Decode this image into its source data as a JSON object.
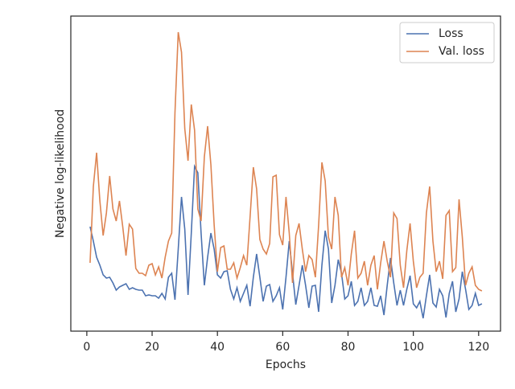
{
  "chart_data": {
    "type": "line",
    "xlabel": "Epochs",
    "ylabel": "Negative log-likelihood",
    "x": [
      1,
      2,
      3,
      4,
      5,
      6,
      7,
      8,
      9,
      10,
      11,
      12,
      13,
      14,
      15,
      16,
      17,
      18,
      19,
      20,
      21,
      22,
      23,
      24,
      25,
      26,
      27,
      28,
      29,
      30,
      31,
      32,
      33,
      34,
      35,
      36,
      37,
      38,
      39,
      40,
      41,
      42,
      43,
      44,
      45,
      46,
      47,
      48,
      49,
      50,
      51,
      52,
      53,
      54,
      55,
      56,
      57,
      58,
      59,
      60,
      61,
      62,
      63,
      64,
      65,
      66,
      67,
      68,
      69,
      70,
      71,
      72,
      73,
      74,
      75,
      76,
      77,
      78,
      79,
      80,
      81,
      82,
      83,
      84,
      85,
      86,
      87,
      88,
      89,
      90,
      91,
      92,
      93,
      94,
      95,
      96,
      97,
      98,
      99,
      100,
      101,
      102,
      103,
      104,
      105,
      106,
      107,
      108,
      109,
      110,
      111,
      112,
      113,
      114,
      115,
      116,
      117,
      118,
      119,
      120,
      121
    ],
    "series": [
      {
        "name": "Loss",
        "color": "#4c72b0",
        "values": [
          130,
          112,
          92,
          82,
          70,
          66,
          67,
          60,
          51,
          55,
          57,
          59,
          52,
          54,
          52,
          51,
          51,
          44,
          45,
          44,
          44,
          41,
          47,
          40,
          67,
          72,
          39,
          102,
          167,
          127,
          45,
          122,
          205,
          197,
          122,
          57,
          92,
          122,
          102,
          70,
          66,
          74,
          75,
          52,
          40,
          54,
          37,
          47,
          57,
          31,
          67,
          96,
          67,
          37,
          56,
          58,
          37,
          44,
          54,
          27,
          67,
          112,
          72,
          33,
          57,
          82,
          57,
          29,
          56,
          57,
          24,
          82,
          125,
          102,
          35,
          57,
          89,
          72,
          40,
          44,
          62,
          32,
          37,
          54,
          32,
          37,
          54,
          32,
          31,
          44,
          20,
          57,
          91,
          60,
          32,
          51,
          32,
          52,
          69,
          34,
          29,
          37,
          16,
          44,
          70,
          35,
          30,
          52,
          44,
          17,
          47,
          62,
          24,
          40,
          74,
          52,
          27,
          32,
          47,
          32,
          34
        ]
      },
      {
        "name": "Val. loss",
        "color": "#dd8452",
        "values": [
          85,
          180,
          222,
          162,
          119,
          147,
          193,
          152,
          137,
          162,
          130,
          94,
          133,
          127,
          78,
          72,
          72,
          69,
          82,
          84,
          70,
          80,
          66,
          92,
          112,
          122,
          272,
          372,
          347,
          252,
          212,
          282,
          250,
          152,
          137,
          217,
          255,
          207,
          132,
          74,
          104,
          106,
          77,
          77,
          85,
          66,
          79,
          94,
          82,
          142,
          204,
          177,
          114,
          102,
          96,
          109,
          192,
          194,
          120,
          107,
          167,
          122,
          60,
          119,
          134,
          102,
          74,
          94,
          89,
          67,
          132,
          210,
          187,
          117,
          102,
          167,
          144,
          67,
          79,
          57,
          96,
          125,
          66,
          72,
          87,
          57,
          82,
          94,
          52,
          85,
          112,
          87,
          67,
          147,
          140,
          82,
          54,
          100,
          134,
          87,
          54,
          67,
          72,
          147,
          180,
          112,
          74,
          87,
          65,
          144,
          150,
          74,
          79,
          164,
          117,
          57,
          72,
          80,
          57,
          52,
          50
        ]
      }
    ],
    "xlim": [
      -4.9,
      126.7
    ],
    "xticks": [
      0,
      20,
      40,
      60,
      80,
      100,
      120
    ],
    "ylim": [
      0,
      392
    ],
    "legend": "upper right"
  }
}
